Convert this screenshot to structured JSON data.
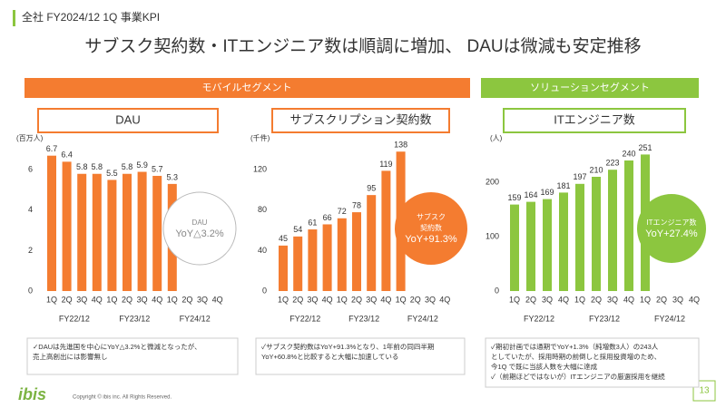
{
  "header": {
    "label": "全社 FY2024/12 1Q 事業KPI",
    "title": "サブスク契約数・ITエンジニア数は順調に増加、 DAUは微減も安定推移"
  },
  "segments": [
    "モバイルセグメント",
    "ソリューションセグメント"
  ],
  "chart_data": [
    {
      "type": "bar",
      "title": "DAU",
      "y_label": "(百万人)",
      "categories": [
        "1Q",
        "2Q",
        "3Q",
        "4Q",
        "1Q",
        "2Q",
        "3Q",
        "4Q",
        "1Q",
        "2Q",
        "3Q",
        "4Q"
      ],
      "groups": [
        "FY22/12",
        "FY23/12",
        "FY24/12"
      ],
      "values": [
        6.7,
        6.4,
        5.8,
        5.8,
        5.5,
        5.8,
        5.9,
        5.7,
        5.3,
        null,
        null,
        null
      ],
      "color": "#f47c30",
      "ylim": [
        0,
        7
      ],
      "yticks": [
        0,
        2,
        4,
        6
      ],
      "callout": [
        "DAU",
        "YoY△3.2%"
      ],
      "note": [
        "✓DAUは先進国を中心にYoY△3.2%と微減となったが、",
        "売上高創出には影響無し"
      ]
    },
    {
      "type": "bar",
      "title": "サブスクリプション契約数",
      "y_label": "(千件)",
      "categories": [
        "1Q",
        "2Q",
        "3Q",
        "4Q",
        "1Q",
        "2Q",
        "3Q",
        "4Q",
        "1Q",
        "2Q",
        "3Q",
        "4Q"
      ],
      "groups": [
        "FY22/12",
        "FY23/12",
        "FY24/12"
      ],
      "values": [
        45,
        54,
        61,
        66,
        72,
        78,
        95,
        119,
        138,
        null,
        null,
        null
      ],
      "color": "#f47c30",
      "ylim": [
        0,
        140
      ],
      "yticks": [
        0,
        40,
        80,
        120
      ],
      "callout": [
        "サブスク",
        "契約数",
        "YoY+91.3%"
      ],
      "note": [
        "✓サブスク契約数はYoY+91.3%となり、1年前の同四半期",
        "YoY+60.8%と比較すると大幅に加速している"
      ]
    },
    {
      "type": "bar",
      "title": "ITエンジニア数",
      "y_label": "(人)",
      "categories": [
        "1Q",
        "2Q",
        "3Q",
        "4Q",
        "1Q",
        "2Q",
        "3Q",
        "4Q",
        "1Q",
        "2Q",
        "3Q",
        "4Q"
      ],
      "groups": [
        "FY22/12",
        "FY23/12",
        "FY24/12"
      ],
      "values": [
        159,
        164,
        169,
        181,
        197,
        210,
        223,
        240,
        251,
        null,
        null,
        null
      ],
      "color": "#8cc63f",
      "ylim": [
        0,
        260
      ],
      "yticks": [
        0,
        100,
        200
      ],
      "callout": [
        "ITエンジニア数",
        "YoY+27.4%"
      ],
      "note": [
        "✓期初計画では通期でYoY+1.3%（純増数3人）の243人",
        "としていたが、採用時期の前倒しと採用投資増のため、",
        "今1Q で既に当該人数を大幅に達成",
        "✓（前期ほどではないが）ITエンジニアの厳選採用を継続"
      ]
    }
  ],
  "footer": {
    "logo": "ibis",
    "copyright": "Copyright © ibis inc. All Rights Reserved.",
    "page": "13"
  }
}
